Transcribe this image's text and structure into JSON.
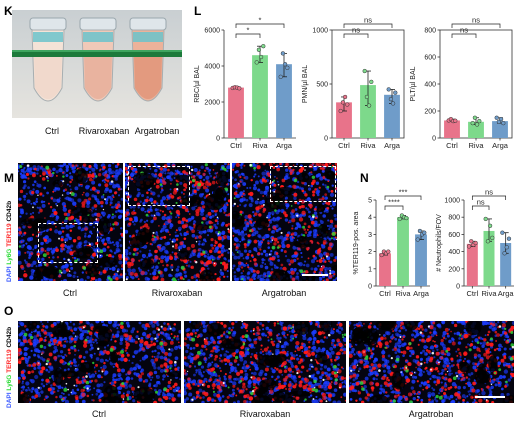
{
  "panels": {
    "k": "K",
    "l": "L",
    "m": "M",
    "n": "N",
    "o": "O"
  },
  "tubes": {
    "labels": [
      "Ctrl",
      "Rivaroxaban",
      "Argatroban"
    ]
  },
  "micro_m": {
    "labels": [
      "Ctrl",
      "Rivaroxaban",
      "Argatroban"
    ],
    "stain": [
      "DAPI",
      "Ly6G",
      "TER119",
      "CD42b"
    ]
  },
  "micro_o": {
    "labels": [
      "Ctrl",
      "Rivaroxaban",
      "Argatroban"
    ],
    "stain": [
      "DAPI",
      "Ly6G",
      "TER119",
      "CD42b"
    ]
  },
  "colors": {
    "ctrl": "#e8738a",
    "riva": "#7dd98b",
    "arga": "#6f9cc9",
    "dapi": "#1b3cff",
    "ly6g": "#2fdc3a",
    "ter119": "#ff1a1a",
    "cd42b": "#ffffff"
  },
  "chart_data": [
    {
      "id": "rbc",
      "type": "bar",
      "ylabel": "RBC/µl BAL",
      "categories": [
        "Ctrl",
        "Riva",
        "Arga"
      ],
      "values": [
        2800,
        4600,
        4100
      ],
      "ylim": [
        0,
        6000
      ],
      "yticks": [
        "0",
        "2000",
        "4000",
        "6000"
      ],
      "points": [
        [
          2780,
          2820,
          2800,
          2760
        ],
        [
          4200,
          4900,
          4500,
          5100
        ],
        [
          3400,
          4700,
          4100,
          3900
        ]
      ],
      "brackets": [
        {
          "from": 0,
          "to": 1,
          "label": "*",
          "level": 1
        },
        {
          "from": 0,
          "to": 2,
          "label": "*",
          "level": 2
        }
      ]
    },
    {
      "id": "pmn",
      "type": "bar",
      "ylabel": "PMN/µl BAL",
      "categories": [
        "Ctrl",
        "Riva",
        "Arga"
      ],
      "values": [
        330,
        490,
        400
      ],
      "ylim": [
        0,
        1000
      ],
      "yticks": [
        "0",
        "500",
        "1000"
      ],
      "points": [
        [
          250,
          330,
          380,
          310
        ],
        [
          620,
          380,
          300,
          520
        ],
        [
          450,
          360,
          320,
          420
        ]
      ],
      "brackets": [
        {
          "from": 0,
          "to": 1,
          "label": "ns",
          "level": 1
        },
        {
          "from": 0,
          "to": 2,
          "label": "ns",
          "level": 2
        }
      ]
    },
    {
      "id": "plt",
      "type": "bar",
      "ylabel": "PLT/µl BAL",
      "categories": [
        "Ctrl",
        "Riva",
        "Arga"
      ],
      "values": [
        130,
        120,
        125
      ],
      "ylim": [
        0,
        800
      ],
      "yticks": [
        "0",
        "200",
        "400",
        "600",
        "800"
      ],
      "points": [
        [
          130,
          140,
          125,
          128
        ],
        [
          110,
          150,
          100,
          125
        ],
        [
          150,
          120,
          140,
          110
        ]
      ],
      "brackets": [
        {
          "from": 0,
          "to": 1,
          "label": "ns",
          "level": 1
        },
        {
          "from": 0,
          "to": 2,
          "label": "ns",
          "level": 2
        }
      ]
    },
    {
      "id": "ter",
      "type": "bar",
      "ylabel": "%TER119-pos. area",
      "categories": [
        "Ctrl",
        "Riva",
        "Arga"
      ],
      "values": [
        1.9,
        4.0,
        3.0
      ],
      "ylim": [
        0,
        5
      ],
      "yticks": [
        "0",
        "1",
        "2",
        "3",
        "4",
        "5"
      ],
      "points": [
        [
          1.8,
          2.0,
          1.9,
          2.0
        ],
        [
          3.9,
          4.1,
          4.0,
          3.95
        ],
        [
          2.7,
          3.2,
          3.0,
          3.1
        ]
      ],
      "brackets": [
        {
          "from": 0,
          "to": 1,
          "label": "****",
          "level": 1
        },
        {
          "from": 0,
          "to": 2,
          "label": "***",
          "level": 2
        }
      ]
    },
    {
      "id": "neu",
      "type": "bar",
      "ylabel": "# Neutrophils/FOV",
      "categories": [
        "Ctrl",
        "Riva",
        "Arga"
      ],
      "values": [
        490,
        640,
        500
      ],
      "ylim": [
        0,
        1000
      ],
      "yticks": [
        "0",
        "200",
        "400",
        "600",
        "800",
        "1000"
      ],
      "points": [
        [
          460,
          520,
          480,
          500
        ],
        [
          780,
          520,
          700,
          560
        ],
        [
          620,
          380,
          450,
          550
        ]
      ],
      "brackets": [
        {
          "from": 0,
          "to": 1,
          "label": "ns",
          "level": 1
        },
        {
          "from": 0,
          "to": 2,
          "label": "ns",
          "level": 2
        }
      ]
    }
  ]
}
